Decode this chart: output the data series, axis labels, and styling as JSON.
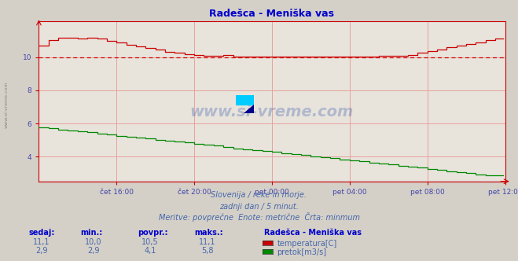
{
  "title": "Radešca - Meniška vas",
  "bg_color": "#d4d0c8",
  "plot_bg_color": "#e8e4dc",
  "grid_color": "#e8a0a0",
  "title_color": "#0000cc",
  "axis_color": "#cc0000",
  "tick_color": "#4444aa",
  "text_color": "#4466aa",
  "temp_color": "#cc0000",
  "flow_color": "#008800",
  "dashed_line_value": 10.0,
  "dashed_line_color": "#cc0000",
  "watermark": "www.si-vreme.com",
  "subtitle1": "Slovenija / reke in morje.",
  "subtitle2": "zadnji dan / 5 minut.",
  "subtitle3": "Meritve: povprečne  Enote: metrične  Črta: minmum",
  "legend_title": "Radešca - Meniška vas",
  "legend_items": [
    "temperatura[C]",
    "pretok[m3/s]"
  ],
  "legend_colors": [
    "#cc0000",
    "#008800"
  ],
  "table_headers": [
    "sedaj:",
    "min.:",
    "povpr.:",
    "maks.:"
  ],
  "table_row1": [
    "11,1",
    "10,0",
    "10,5",
    "11,1"
  ],
  "table_row2": [
    "2,9",
    "2,9",
    "4,1",
    "5,8"
  ],
  "side_label": "www.si-vreme.com",
  "xticklabels": [
    "čet 16:00",
    "čet 20:00",
    "pet 00:00",
    "pet 04:00",
    "pet 08:00",
    "pet 12:00"
  ],
  "yticks": [
    4,
    6,
    8,
    10
  ],
  "ylim": [
    2.5,
    12.2
  ],
  "xlim": [
    0,
    288
  ],
  "xtick_pos": [
    48,
    96,
    144,
    192,
    240,
    288
  ],
  "n_points": 288
}
